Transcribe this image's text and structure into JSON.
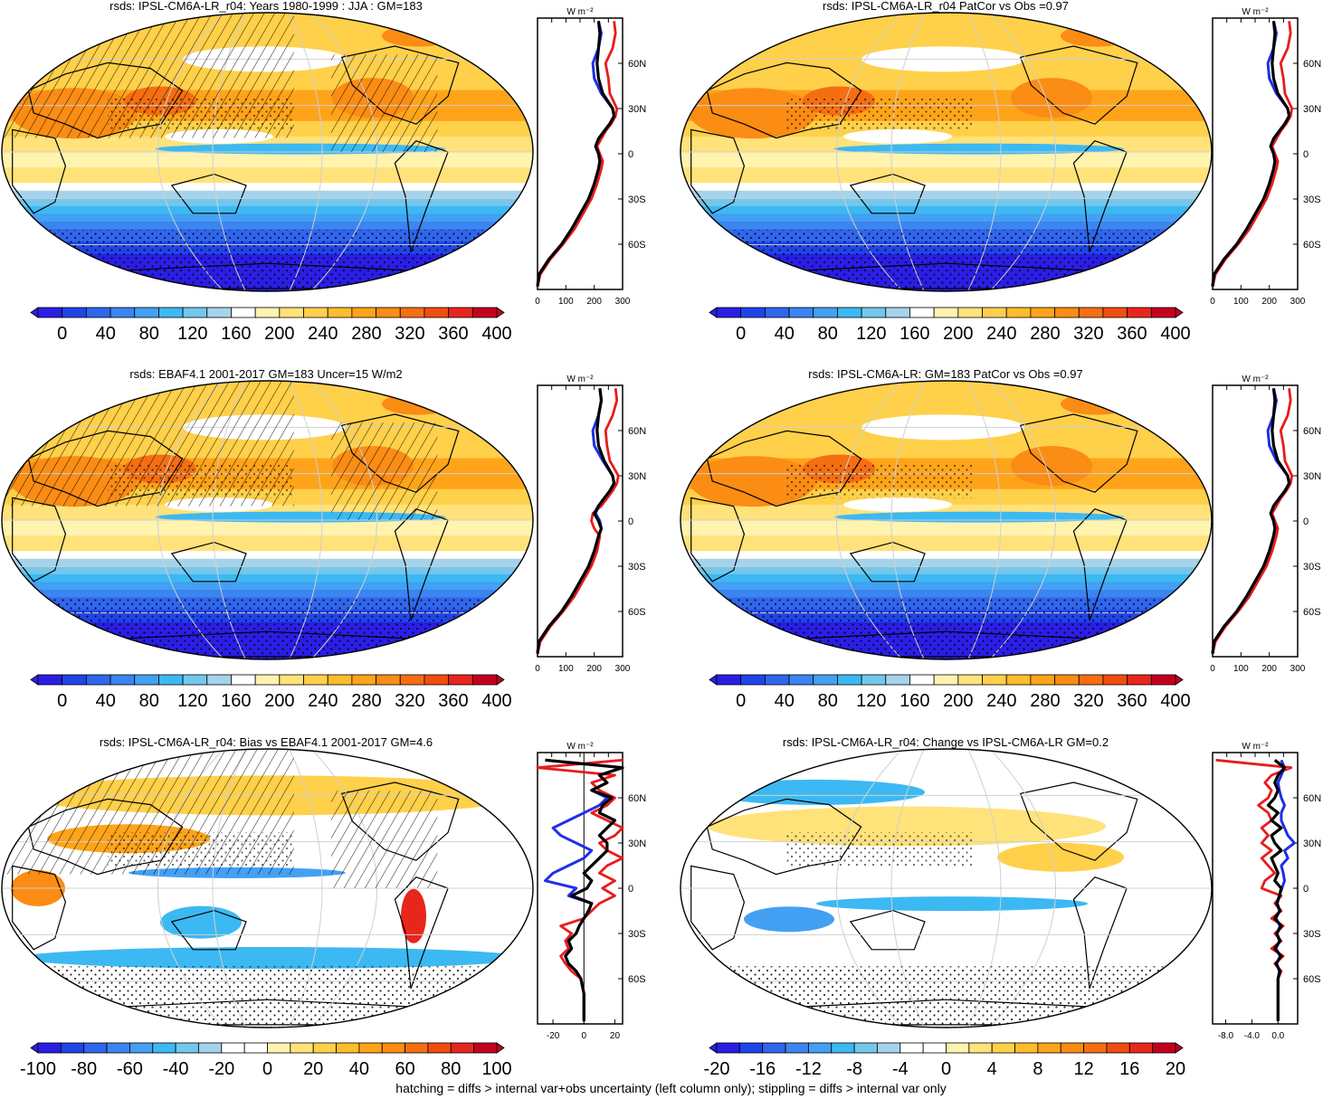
{
  "footnote": "hatching = diffs > internal var+obs uncertainty (left column only); stippling = diffs > internal var only",
  "unit_label": "W m⁻²",
  "lat_labels": [
    "60N",
    "30N",
    "0",
    "30S",
    "60S"
  ],
  "palette_abs": [
    "#2a1ee6",
    "#1f45e8",
    "#2f66ec",
    "#3c84f0",
    "#43a0f3",
    "#3cb9f2",
    "#74c7ec",
    "#a5d3ec",
    "#ffffff",
    "#fff3b0",
    "#ffe27a",
    "#ffd04a",
    "#ffbc2c",
    "#ffa41a",
    "#fb8c14",
    "#f56e12",
    "#ef4e10",
    "#e8261c",
    "#c4001e"
  ],
  "palette_bias": [
    "#2a1ee6",
    "#1f45e8",
    "#2f66ec",
    "#3c84f0",
    "#43a0f3",
    "#3cb9f2",
    "#74c7ec",
    "#a5d3ec",
    "#ffffff",
    "#ffffff",
    "#fff3b0",
    "#ffe27a",
    "#ffd04a",
    "#ffbc2c",
    "#ffa41a",
    "#fb8c14",
    "#f56e12",
    "#ef4e10",
    "#e8261c",
    "#c4001e"
  ],
  "series_colors": {
    "model": "#000000",
    "obs": "#1f2fe8",
    "alt": "#e81c1c"
  },
  "panels": [
    {
      "title": "rsds: IPSL-CM6A-LR_r04: Years 1980-1999 : JJA : GM=183",
      "colorbar_labels": [
        "0",
        "40",
        "80",
        "120",
        "160",
        "200",
        "240",
        "280",
        "320",
        "360",
        "400"
      ],
      "palette": "abs",
      "map_style": "abs",
      "hatch": true,
      "stipple": true,
      "zonal": {
        "xlim": [
          0,
          300
        ],
        "xticks": [
          "0",
          "100",
          "200",
          "300"
        ],
        "ref_line": null,
        "lat": [
          -88,
          -80,
          -70,
          -60,
          -50,
          -40,
          -30,
          -20,
          -10,
          -5,
          0,
          5,
          10,
          15,
          20,
          25,
          30,
          40,
          50,
          60,
          70,
          80,
          88
        ],
        "black": [
          0,
          5,
          40,
          85,
          120,
          150,
          180,
          200,
          215,
          220,
          215,
          205,
          215,
          235,
          255,
          270,
          265,
          230,
          215,
          210,
          215,
          220,
          215
        ],
        "blue": [
          0,
          5,
          40,
          85,
          120,
          150,
          180,
          200,
          215,
          220,
          215,
          205,
          215,
          235,
          255,
          270,
          265,
          225,
          200,
          195,
          215,
          225,
          215
        ],
        "red": [
          0,
          10,
          45,
          90,
          130,
          160,
          190,
          210,
          225,
          230,
          220,
          210,
          225,
          240,
          260,
          275,
          280,
          255,
          250,
          240,
          265,
          275,
          270
        ]
      }
    },
    {
      "title": "rsds: IPSL-CM6A-LR_r04 PatCor vs Obs =0.97",
      "colorbar_labels": [
        "0",
        "40",
        "80",
        "120",
        "160",
        "200",
        "240",
        "280",
        "320",
        "360",
        "400"
      ],
      "palette": "abs",
      "map_style": "abs",
      "hatch": false,
      "stipple": true,
      "zonal": {
        "xlim": [
          0,
          300
        ],
        "xticks": [
          "0",
          "100",
          "200",
          "300"
        ],
        "ref_line": null,
        "lat": [
          -88,
          -80,
          -70,
          -60,
          -50,
          -40,
          -30,
          -20,
          -10,
          -5,
          0,
          5,
          10,
          15,
          20,
          25,
          30,
          40,
          50,
          60,
          70,
          80,
          88
        ],
        "black": [
          0,
          5,
          40,
          85,
          120,
          150,
          180,
          200,
          215,
          220,
          215,
          205,
          215,
          235,
          255,
          270,
          265,
          230,
          215,
          210,
          215,
          220,
          215
        ],
        "blue": [
          0,
          5,
          40,
          85,
          120,
          150,
          180,
          200,
          215,
          220,
          215,
          205,
          215,
          235,
          255,
          270,
          265,
          225,
          200,
          195,
          215,
          225,
          215
        ],
        "red": [
          0,
          10,
          45,
          90,
          130,
          160,
          190,
          210,
          225,
          230,
          220,
          210,
          225,
          240,
          260,
          275,
          280,
          255,
          250,
          240,
          265,
          275,
          270
        ]
      }
    },
    {
      "title": "rsds: EBAF4.1 2001-2017 GM=183 Uncer=15 W/m2",
      "colorbar_labels": [
        "0",
        "40",
        "80",
        "120",
        "160",
        "200",
        "240",
        "280",
        "320",
        "360",
        "400"
      ],
      "palette": "abs",
      "map_style": "abs",
      "hatch": true,
      "stipple": true,
      "zonal": {
        "xlim": [
          0,
          300
        ],
        "xticks": [
          "0",
          "100",
          "200",
          "300"
        ],
        "ref_line": null,
        "lat": [
          -88,
          -80,
          -70,
          -60,
          -50,
          -40,
          -30,
          -20,
          -10,
          -5,
          0,
          5,
          10,
          15,
          20,
          25,
          30,
          40,
          50,
          60,
          70,
          80,
          88
        ],
        "black": [
          0,
          5,
          40,
          85,
          120,
          150,
          180,
          200,
          215,
          225,
          215,
          200,
          215,
          235,
          255,
          270,
          265,
          235,
          215,
          210,
          215,
          225,
          220
        ],
        "blue": [
          0,
          5,
          40,
          85,
          120,
          150,
          180,
          200,
          215,
          225,
          220,
          205,
          215,
          235,
          255,
          270,
          265,
          230,
          200,
          195,
          215,
          225,
          220
        ],
        "red": [
          0,
          10,
          45,
          90,
          130,
          160,
          190,
          210,
          220,
          200,
          190,
          195,
          225,
          245,
          265,
          280,
          285,
          255,
          245,
          240,
          265,
          280,
          275
        ]
      }
    },
    {
      "title": "rsds: IPSL-CM6A-LR: GM=183 PatCor vs Obs =0.97",
      "colorbar_labels": [
        "0",
        "40",
        "80",
        "120",
        "160",
        "200",
        "240",
        "280",
        "320",
        "360",
        "400"
      ],
      "palette": "abs",
      "map_style": "abs",
      "hatch": false,
      "stipple": true,
      "zonal": {
        "xlim": [
          0,
          300
        ],
        "xticks": [
          "0",
          "100",
          "200",
          "300"
        ],
        "ref_line": null,
        "lat": [
          -88,
          -80,
          -70,
          -60,
          -50,
          -40,
          -30,
          -20,
          -10,
          -5,
          0,
          5,
          10,
          15,
          20,
          25,
          30,
          40,
          50,
          60,
          70,
          80,
          88
        ],
        "black": [
          0,
          5,
          40,
          85,
          120,
          150,
          180,
          200,
          215,
          220,
          215,
          205,
          215,
          235,
          255,
          270,
          265,
          230,
          215,
          210,
          215,
          220,
          215
        ],
        "blue": [
          0,
          5,
          40,
          85,
          120,
          150,
          180,
          200,
          215,
          220,
          215,
          205,
          215,
          235,
          255,
          270,
          265,
          225,
          200,
          195,
          215,
          225,
          215
        ],
        "red": [
          0,
          10,
          45,
          90,
          130,
          160,
          190,
          210,
          225,
          230,
          220,
          210,
          225,
          240,
          260,
          275,
          280,
          255,
          250,
          240,
          265,
          275,
          270
        ]
      }
    },
    {
      "title": "rsds: IPSL-CM6A-LR_r04: Bias vs EBAF4.1 2001-2017 GM=4.6",
      "colorbar_labels": [
        "-100",
        "-80",
        "-60",
        "-40",
        "-20",
        "0",
        "20",
        "40",
        "60",
        "80",
        "100"
      ],
      "palette": "bias",
      "map_style": "bias",
      "hatch": true,
      "stipple": true,
      "zonal": {
        "xlim": [
          -30,
          25
        ],
        "xticks": [
          "-20",
          "0",
          "20"
        ],
        "ref_line": 0,
        "lat": [
          -88,
          -80,
          -70,
          -60,
          -55,
          -50,
          -45,
          -40,
          -35,
          -30,
          -25,
          -20,
          -15,
          -10,
          -5,
          0,
          5,
          10,
          15,
          20,
          25,
          30,
          35,
          40,
          45,
          50,
          55,
          60,
          65,
          70,
          75,
          80,
          85
        ],
        "black": [
          0,
          0,
          0,
          -2,
          -5,
          -10,
          -12,
          -8,
          -10,
          -5,
          -3,
          0,
          3,
          5,
          -8,
          2,
          5,
          0,
          5,
          10,
          15,
          15,
          10,
          15,
          20,
          10,
          12,
          18,
          5,
          15,
          10,
          25,
          -25
        ],
        "blue": [
          0,
          0,
          0,
          -2,
          -5,
          -10,
          -12,
          -8,
          -10,
          -5,
          -3,
          0,
          3,
          5,
          -10,
          -5,
          -25,
          -20,
          -10,
          0,
          5,
          -5,
          -15,
          -20,
          -10,
          0,
          10,
          15,
          5,
          15,
          10,
          25,
          -25
        ],
        "red": [
          0,
          0,
          0,
          -2,
          -8,
          -12,
          -15,
          -10,
          -12,
          -8,
          -15,
          0,
          5,
          10,
          20,
          12,
          20,
          10,
          15,
          25,
          15,
          10,
          20,
          25,
          15,
          5,
          15,
          20,
          10,
          5,
          20,
          -30,
          25
        ]
      }
    },
    {
      "title": "rsds: IPSL-CM6A-LR_r04: Change vs IPSL-CM6A-LR GM=0.2",
      "colorbar_labels": [
        "-20",
        "-16",
        "-12",
        "-8",
        "-4",
        "0",
        "4",
        "8",
        "12",
        "16",
        "20"
      ],
      "palette": "bias",
      "map_style": "change",
      "hatch": false,
      "stipple": true,
      "zonal": {
        "xlim": [
          -10,
          3
        ],
        "xticks": [
          "-8.0",
          "-4.0",
          "0.0"
        ],
        "ref_line": null,
        "lat": [
          -88,
          -80,
          -70,
          -60,
          -55,
          -50,
          -45,
          -40,
          -35,
          -30,
          -25,
          -20,
          -15,
          -10,
          -5,
          0,
          5,
          10,
          15,
          20,
          25,
          30,
          35,
          40,
          45,
          50,
          55,
          60,
          65,
          70,
          75,
          80,
          85
        ],
        "black": [
          0,
          0,
          0,
          0,
          0.3,
          -0.3,
          0.5,
          -0.5,
          0.3,
          -0.2,
          0.5,
          -0.5,
          0.3,
          -0.2,
          0.2,
          0.5,
          -0.5,
          0,
          -0.5,
          -1,
          0.5,
          -0.5,
          -1,
          0.5,
          -1,
          0,
          -1.5,
          -0.5,
          0,
          -0.5,
          0,
          1,
          -0.5
        ],
        "blue": [
          0,
          0,
          0,
          0,
          0.2,
          -0.2,
          0.3,
          -0.3,
          0.2,
          -0.2,
          0.3,
          -0.3,
          0.2,
          -0.1,
          0.2,
          0.6,
          1.0,
          0.8,
          0.5,
          1.5,
          1.0,
          2.5,
          1.5,
          1.0,
          0.5,
          0.5,
          1.0,
          0.5,
          0.2,
          0,
          0.5,
          1,
          0.5
        ],
        "red": [
          0,
          0,
          0,
          0,
          0.5,
          -0.5,
          0.8,
          -1.0,
          0.5,
          -0.5,
          0.8,
          -1.0,
          0.5,
          -0.5,
          0.5,
          -2.5,
          -2.0,
          -0.5,
          -1.5,
          -2.5,
          -1.0,
          -2.5,
          -1.5,
          -2.5,
          -1.0,
          -1.5,
          -3.0,
          -1.5,
          -1.0,
          -2.0,
          -1.0,
          2.0,
          -9.5
        ]
      }
    }
  ]
}
